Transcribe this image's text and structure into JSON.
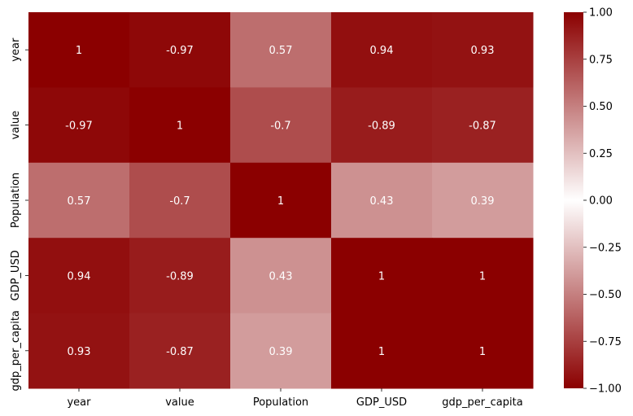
{
  "chart_data": {
    "type": "heatmap",
    "rows": [
      "year",
      "value",
      "Population",
      "GDP_USD",
      "gdp_per_capita"
    ],
    "columns": [
      "year",
      "value",
      "Population",
      "GDP_USD",
      "gdp_per_capita"
    ],
    "values": [
      [
        1,
        -0.97,
        0.57,
        0.94,
        0.93
      ],
      [
        -0.97,
        1,
        -0.7,
        -0.89,
        -0.87
      ],
      [
        0.57,
        -0.7,
        1,
        0.43,
        0.39
      ],
      [
        0.94,
        -0.89,
        0.43,
        1,
        1
      ],
      [
        0.93,
        -0.87,
        0.39,
        1,
        1
      ]
    ],
    "cell_labels": [
      [
        "1",
        "-0.97",
        "0.57",
        "0.94",
        "0.93"
      ],
      [
        "-0.97",
        "1",
        "-0.7",
        "-0.89",
        "-0.87"
      ],
      [
        "0.57",
        "-0.7",
        "1",
        "0.43",
        "0.39"
      ],
      [
        "0.94",
        "-0.89",
        "0.43",
        "1",
        "1"
      ],
      [
        "0.93",
        "-0.87",
        "0.39",
        "1",
        "1"
      ]
    ],
    "colorbar": {
      "range": [
        -1.0,
        1.0
      ],
      "ticks": [
        1.0,
        0.75,
        0.5,
        0.25,
        0.0,
        -0.25,
        -0.5,
        -0.75,
        -1.0
      ],
      "tick_labels": [
        "1.00",
        "0.75",
        "0.50",
        "0.25",
        "0.00",
        "−0.25",
        "−0.50",
        "−0.75",
        "−1.00"
      ],
      "colors": {
        "extreme": "#8b0000",
        "center": "#ffffff"
      }
    },
    "title": "",
    "xlabel": "",
    "ylabel": "",
    "grid": false
  }
}
